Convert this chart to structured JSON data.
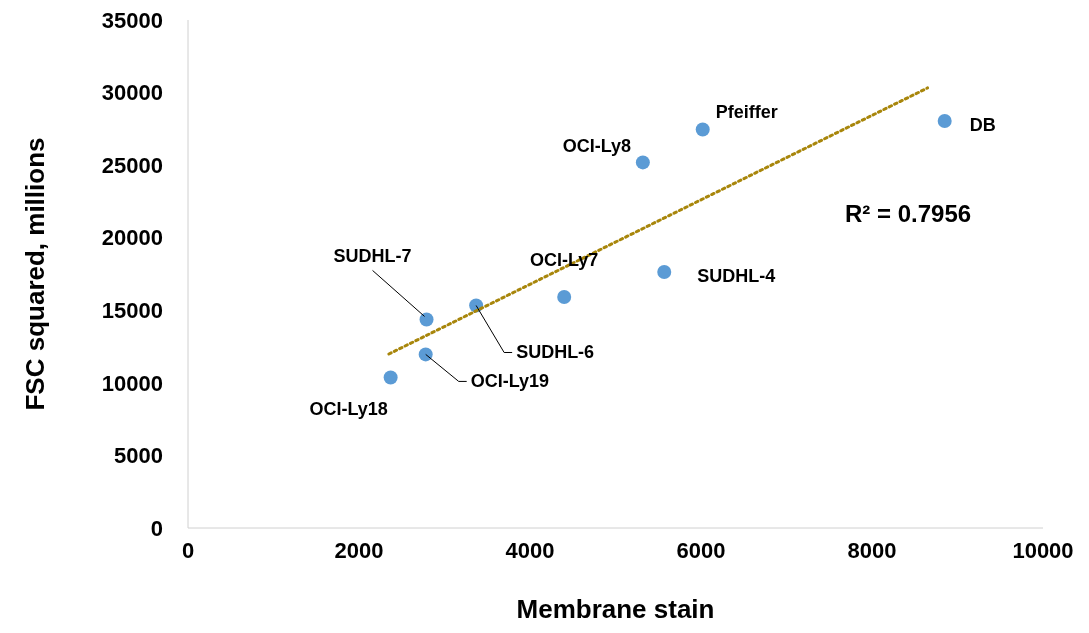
{
  "chart_data": {
    "type": "scatter",
    "xlabel": "Membrane stain",
    "ylabel": "FSC squared, millions",
    "xlim": [
      0,
      10000
    ],
    "xticks": [
      0,
      2000,
      4000,
      6000,
      8000,
      10000
    ],
    "ylim": [
      0,
      35000
    ],
    "yticks": [
      0,
      5000,
      10000,
      15000,
      20000,
      25000,
      30000,
      35000
    ],
    "series": [
      {
        "marker": "circle",
        "color": "#5b9bd5",
        "x": [
          2370,
          2780,
          2790,
          3370,
          4400,
          5570,
          5320,
          6020,
          8850
        ],
        "values": [
          10370,
          11960,
          14370,
          15330,
          15920,
          17640,
          25190,
          27460,
          28040
        ]
      },
      {
        "type": "line",
        "color": "#a8860b",
        "line_style": "dotted",
        "x": [
          2350,
          8650
        ],
        "values": [
          11990,
          30320
        ]
      }
    ],
    "annotations": [
      {
        "text": "OCI-Ly18",
        "x": 2370,
        "y": 10370
      },
      {
        "text": "OCI-Ly19",
        "x": 2780,
        "y": 11960
      },
      {
        "text": "SUDHL-7",
        "x": 2790,
        "y": 14370
      },
      {
        "text": "SUDHL-6",
        "x": 3370,
        "y": 15330
      },
      {
        "text": "OCI-Ly7",
        "x": 4400,
        "y": 15920
      },
      {
        "text": "SUDHL-4",
        "x": 5570,
        "y": 17640
      },
      {
        "text": "OCI-Ly8",
        "x": 5320,
        "y": 25190
      },
      {
        "text": "Pfeiffer",
        "x": 6020,
        "y": 27460
      },
      {
        "text": "DB",
        "x": 8850,
        "y": 28040
      },
      "R² = 0.7956"
    ]
  }
}
